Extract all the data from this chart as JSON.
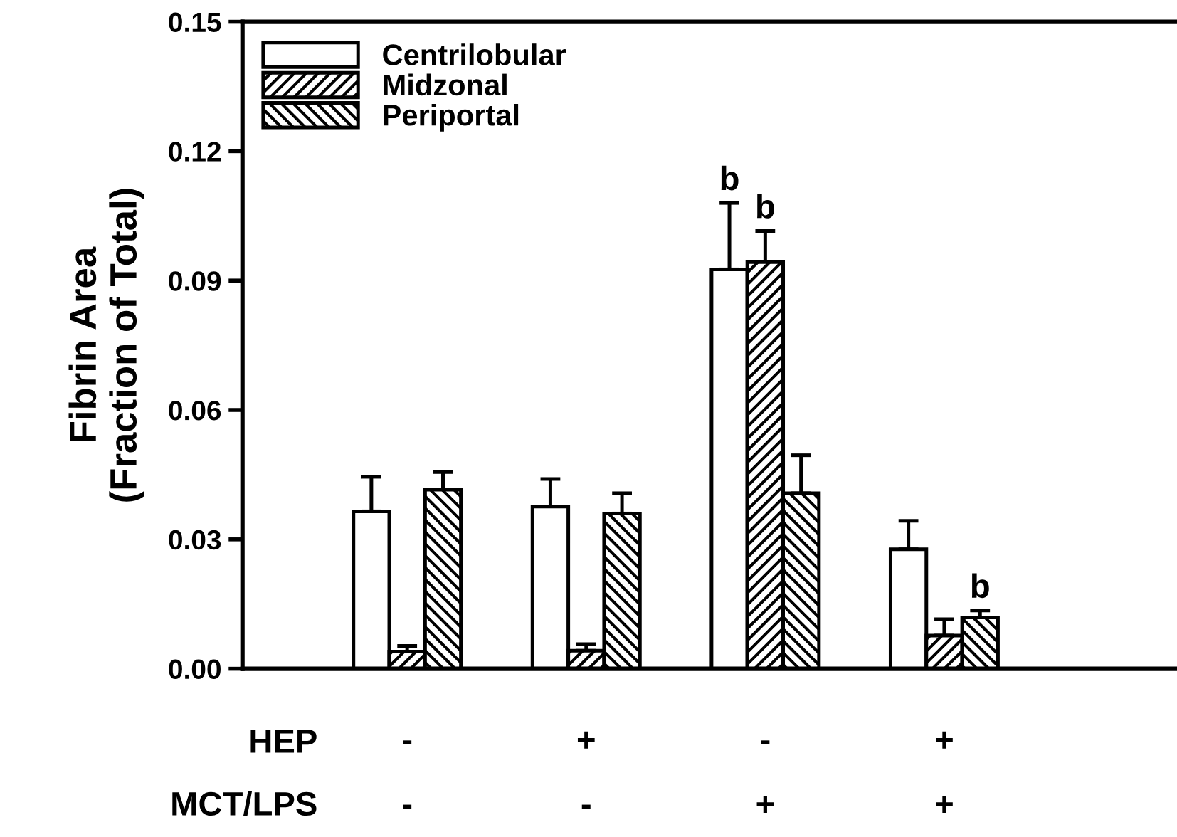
{
  "chart_data": {
    "type": "bar",
    "ylabel": "Fibrin Area\n(Fraction of Total)",
    "categories": [
      "-\n-",
      "+\n-",
      "-\n+",
      "+\n+"
    ],
    "annotations": [
      "HEP",
      "MCT/LPS"
    ],
    "series": [
      {
        "name": "Centrilobular",
        "color": "#ffffff",
        "values": [
          0.0365,
          0.0376,
          0.0926,
          0.0277
        ],
        "errors": [
          [
            0.0365,
            0.0445
          ],
          [
            0.0376,
            0.044
          ],
          [
            0.0926,
            0.108
          ],
          [
            0.0277,
            0.0343
          ]
        ],
        "value_labels": [
          null,
          null,
          "b",
          null
        ]
      },
      {
        "name": "Midzonal",
        "color": "#000000",
        "values": [
          0.004,
          0.0042,
          0.0943,
          0.0077
        ],
        "errors": [
          [
            0.004,
            0.0053
          ],
          [
            0.0042,
            0.0057
          ],
          [
            0.0943,
            0.1015
          ],
          [
            0.0077,
            0.0115
          ]
        ],
        "value_labels": [
          null,
          null,
          "b",
          null
        ]
      },
      {
        "name": "Periportal",
        "color": "#000000",
        "values": [
          0.0415,
          0.036,
          0.0407,
          0.0119
        ],
        "errors": [
          [
            0.0415,
            0.0456
          ],
          [
            0.036,
            0.0407
          ],
          [
            0.0407,
            0.0495
          ],
          [
            0.0119,
            0.0135
          ]
        ],
        "value_labels": [
          null,
          null,
          null,
          "b"
        ]
      }
    ],
    "ylim": [
      0,
      0.15
    ],
    "yticks": [
      {
        "value": 0,
        "label": "0.00"
      },
      {
        "value": 0.03,
        "label": "0.03"
      },
      {
        "value": 0.06,
        "label": "0.06"
      },
      {
        "value": 0.09,
        "label": "0.09"
      },
      {
        "value": 0.12,
        "label": "0.12"
      },
      {
        "value": 0.15,
        "label": "0.15"
      }
    ],
    "legend": "top left",
    "grid": false
  }
}
